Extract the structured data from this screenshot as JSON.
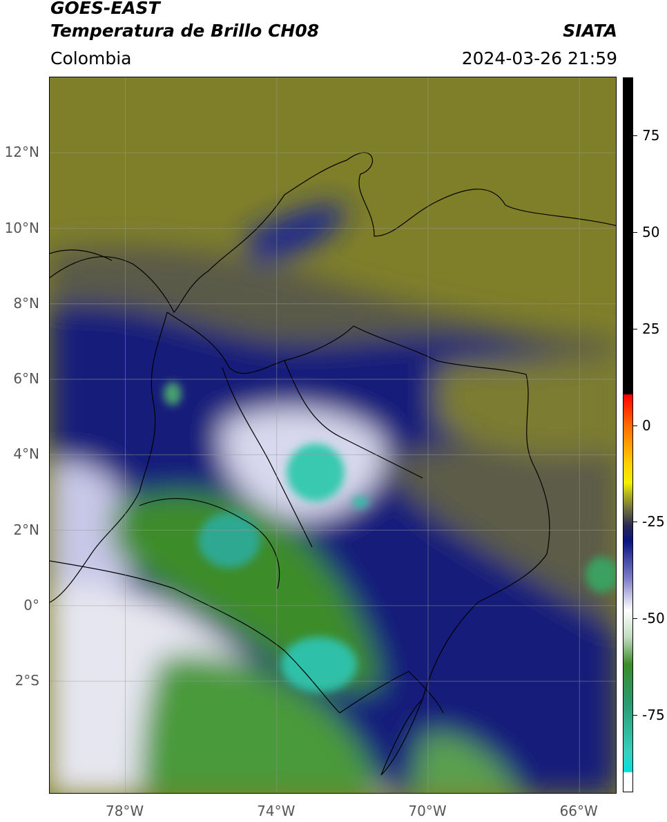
{
  "header": {
    "satellite": "GOES-EAST",
    "product": "Temperatura de Brillo CH08",
    "brand": "SIATA",
    "region": "Colombia",
    "datetime": "2024-03-26 21:59"
  },
  "map": {
    "type": "satellite brightness-temperature map",
    "lon_range": [
      -80,
      -65
    ],
    "lat_range": [
      -5,
      14
    ],
    "lat_ticks": [
      {
        "value": 12,
        "label": "12°N"
      },
      {
        "value": 10,
        "label": "10°N"
      },
      {
        "value": 8,
        "label": "8°N"
      },
      {
        "value": 6,
        "label": "6°N"
      },
      {
        "value": 4,
        "label": "4°N"
      },
      {
        "value": 2,
        "label": "2°N"
      },
      {
        "value": 0,
        "label": "0°"
      },
      {
        "value": -2,
        "label": "2°S"
      }
    ],
    "lon_ticks": [
      {
        "value": -78,
        "label": "78°W"
      },
      {
        "value": -74,
        "label": "74°W"
      },
      {
        "value": -70,
        "label": "70°W"
      },
      {
        "value": -66,
        "label": "66°W"
      }
    ],
    "grid": true,
    "colors": {
      "clear_olive": "#7f7f2a",
      "mid_gray": "#5a5a4a",
      "cold_navy": "#121a7a",
      "very_cold_white": "#f2f2f5",
      "coldest_green": "#3c8c2a",
      "extreme_teal": "#38c9b0"
    }
  },
  "colorbar": {
    "range": [
      -95,
      90
    ],
    "ticks": [
      {
        "value": 75,
        "label": "75"
      },
      {
        "value": 50,
        "label": "50"
      },
      {
        "value": 25,
        "label": "25"
      },
      {
        "value": 0,
        "label": "0"
      },
      {
        "value": -25,
        "label": "-25"
      },
      {
        "value": -50,
        "label": "-50"
      },
      {
        "value": -75,
        "label": "-75"
      }
    ]
  }
}
